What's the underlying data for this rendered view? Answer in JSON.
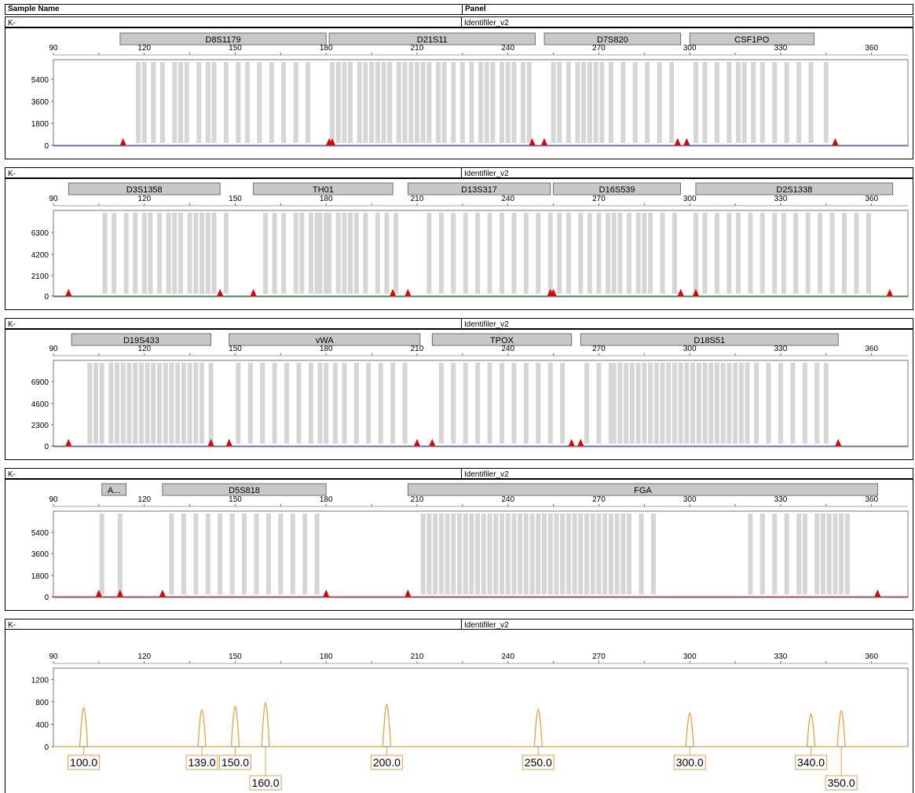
{
  "header": {
    "col1": "Sample Name",
    "col2": "Panel"
  },
  "panels": [
    {
      "sample": "K-",
      "panel": "Identifiler_v2",
      "yticks": [
        "5400",
        "3600",
        "1800",
        "0"
      ],
      "ymax": 7200,
      "markers": [
        {
          "name": "D8S1179",
          "start": 112,
          "end": 180
        },
        {
          "name": "D21S11",
          "start": 181,
          "end": 249
        },
        {
          "name": "D7S820",
          "start": 252,
          "end": 297
        },
        {
          "name": "CSF1PO",
          "start": 300,
          "end": 341
        }
      ],
      "bins": [
        118,
        120,
        123,
        126,
        130,
        132,
        134,
        138,
        141,
        143,
        147,
        151,
        154,
        158,
        162,
        166,
        170,
        174,
        182,
        184,
        186,
        188,
        191,
        193,
        195,
        197,
        199,
        201,
        204,
        206,
        208,
        210,
        212,
        214,
        217,
        219,
        222,
        225,
        228,
        231,
        233,
        235,
        238,
        240,
        242,
        245,
        247,
        255,
        257,
        260,
        263,
        265,
        267,
        269,
        271,
        274,
        278,
        282,
        286,
        290,
        294,
        302,
        305,
        309,
        313,
        316,
        318,
        321,
        324,
        328,
        332,
        336,
        340,
        345
      ],
      "triangles": [
        113,
        181,
        182,
        248,
        252,
        296,
        299,
        348
      ],
      "trace_color": "#6a6ad0"
    },
    {
      "sample": "K-",
      "panel": "Identifiler_v2",
      "yticks": [
        "6300",
        "4200",
        "2100",
        "0"
      ],
      "ymax": 8400,
      "markers": [
        {
          "name": "D3S1358",
          "start": 95,
          "end": 145
        },
        {
          "name": "TH01",
          "start": 156,
          "end": 202
        },
        {
          "name": "D13S317",
          "start": 207,
          "end": 254
        },
        {
          "name": "D16S539",
          "start": 255,
          "end": 297
        },
        {
          "name": "D2S1338",
          "start": 302,
          "end": 367
        }
      ],
      "bins": [
        107,
        110,
        114,
        117,
        120,
        122,
        125,
        128,
        130,
        132,
        135,
        137,
        139,
        141,
        143,
        147,
        160,
        163,
        166,
        170,
        172,
        175,
        177,
        178,
        180,
        181,
        184,
        186,
        188,
        190,
        193,
        197,
        200,
        203,
        214,
        218,
        222,
        226,
        230,
        234,
        238,
        242,
        246,
        250,
        254,
        257,
        260,
        264,
        267,
        270,
        273,
        275,
        277,
        280,
        283,
        285,
        287,
        291,
        295,
        302,
        305,
        309,
        313,
        316,
        320,
        324,
        328,
        331,
        335,
        339,
        343,
        347,
        351,
        355,
        359
      ],
      "triangles": [
        95,
        145,
        156,
        202,
        207,
        254,
        255,
        297,
        302,
        366
      ],
      "trace_color": "#3a8a3a"
    },
    {
      "sample": "K-",
      "panel": "Identifiler_v2",
      "yticks": [
        "6900",
        "4600",
        "2300",
        "0"
      ],
      "ymax": 9200,
      "markers": [
        {
          "name": "D19S433",
          "start": 96,
          "end": 142
        },
        {
          "name": "vWA",
          "start": 148,
          "end": 211
        },
        {
          "name": "TPOX",
          "start": 215,
          "end": 261
        },
        {
          "name": "D18S51",
          "start": 264,
          "end": 349
        }
      ],
      "bins": [
        102,
        104,
        106,
        109,
        111,
        113,
        115,
        117,
        119,
        121,
        123,
        125,
        127,
        129,
        131,
        133,
        135,
        137,
        139,
        142,
        151,
        155,
        159,
        163,
        167,
        171,
        175,
        178,
        180,
        183,
        186,
        190,
        194,
        198,
        202,
        206,
        218,
        222,
        226,
        230,
        234,
        238,
        242,
        246,
        250,
        254,
        258,
        266,
        270,
        274,
        275,
        277,
        279,
        281,
        283,
        285,
        287,
        289,
        291,
        293,
        295,
        297,
        299,
        301,
        303,
        305,
        307,
        309,
        311,
        313,
        315,
        317,
        319,
        322,
        326,
        330,
        334,
        338,
        342,
        345
      ],
      "triangles": [
        95,
        142,
        148,
        210,
        215,
        261,
        264,
        349
      ],
      "trace_color": "#6a6ad0"
    },
    {
      "sample": "K-",
      "panel": "Identifiler_v2",
      "yticks": [
        "5400",
        "3600",
        "1800",
        "0"
      ],
      "ymax": 7200,
      "markers": [
        {
          "name": "A...",
          "start": 106,
          "end": 114
        },
        {
          "name": "D5S818",
          "start": 126,
          "end": 180
        },
        {
          "name": "FGA",
          "start": 207,
          "end": 362
        }
      ],
      "bins": [
        106,
        112,
        129,
        133,
        137,
        141,
        145,
        149,
        153,
        157,
        161,
        165,
        169,
        173,
        177,
        212,
        214,
        216,
        218,
        220,
        222,
        224,
        226,
        228,
        230,
        232,
        234,
        236,
        238,
        240,
        242,
        244,
        246,
        248,
        250,
        252,
        254,
        256,
        258,
        260,
        262,
        264,
        266,
        268,
        270,
        272,
        274,
        276,
        278,
        280,
        284,
        288,
        320,
        324,
        328,
        332,
        336,
        338,
        342,
        344,
        346,
        348,
        350,
        352
      ],
      "triangles": [
        105,
        112,
        126,
        180,
        207,
        362
      ],
      "trace_color": "#c03030"
    }
  ],
  "ladder": {
    "sample": "K-",
    "panel": "Identifiler_v2",
    "yticks": [
      "1200",
      "800",
      "400",
      "0"
    ],
    "ymax": 1400,
    "peaks": [
      {
        "size": 100,
        "height": 700,
        "label": "100.0"
      },
      {
        "size": 139,
        "height": 660,
        "label": "139.0"
      },
      {
        "size": 150,
        "height": 720,
        "label": "150.0"
      },
      {
        "size": 160,
        "height": 780,
        "label": "160.0"
      },
      {
        "size": 200,
        "height": 760,
        "label": "200.0"
      },
      {
        "size": 250,
        "height": 670,
        "label": "250.0"
      },
      {
        "size": 300,
        "height": 600,
        "label": "300.0"
      },
      {
        "size": 340,
        "height": 590,
        "label": "340.0"
      },
      {
        "size": 350,
        "height": 640,
        "label": "350.0"
      }
    ],
    "trace_color": "#f0a040"
  },
  "chart_data": {
    "type": "line",
    "xlabel": "",
    "ylabel": "",
    "xlim": [
      90,
      372
    ],
    "xticks": [
      "90",
      "120",
      "150",
      "180",
      "210",
      "240",
      "270",
      "300",
      "330",
      "360"
    ],
    "series": [
      {
        "name": "100.0",
        "x": 100,
        "y": 700
      },
      {
        "name": "139.0",
        "x": 139,
        "y": 660
      },
      {
        "name": "150.0",
        "x": 150,
        "y": 720
      },
      {
        "name": "160.0",
        "x": 160,
        "y": 780
      },
      {
        "name": "200.0",
        "x": 200,
        "y": 760
      },
      {
        "name": "250.0",
        "x": 250,
        "y": 670
      },
      {
        "name": "300.0",
        "x": 300,
        "y": 600
      },
      {
        "name": "340.0",
        "x": 340,
        "y": 590
      },
      {
        "name": "350.0",
        "x": 350,
        "y": 640
      }
    ]
  }
}
